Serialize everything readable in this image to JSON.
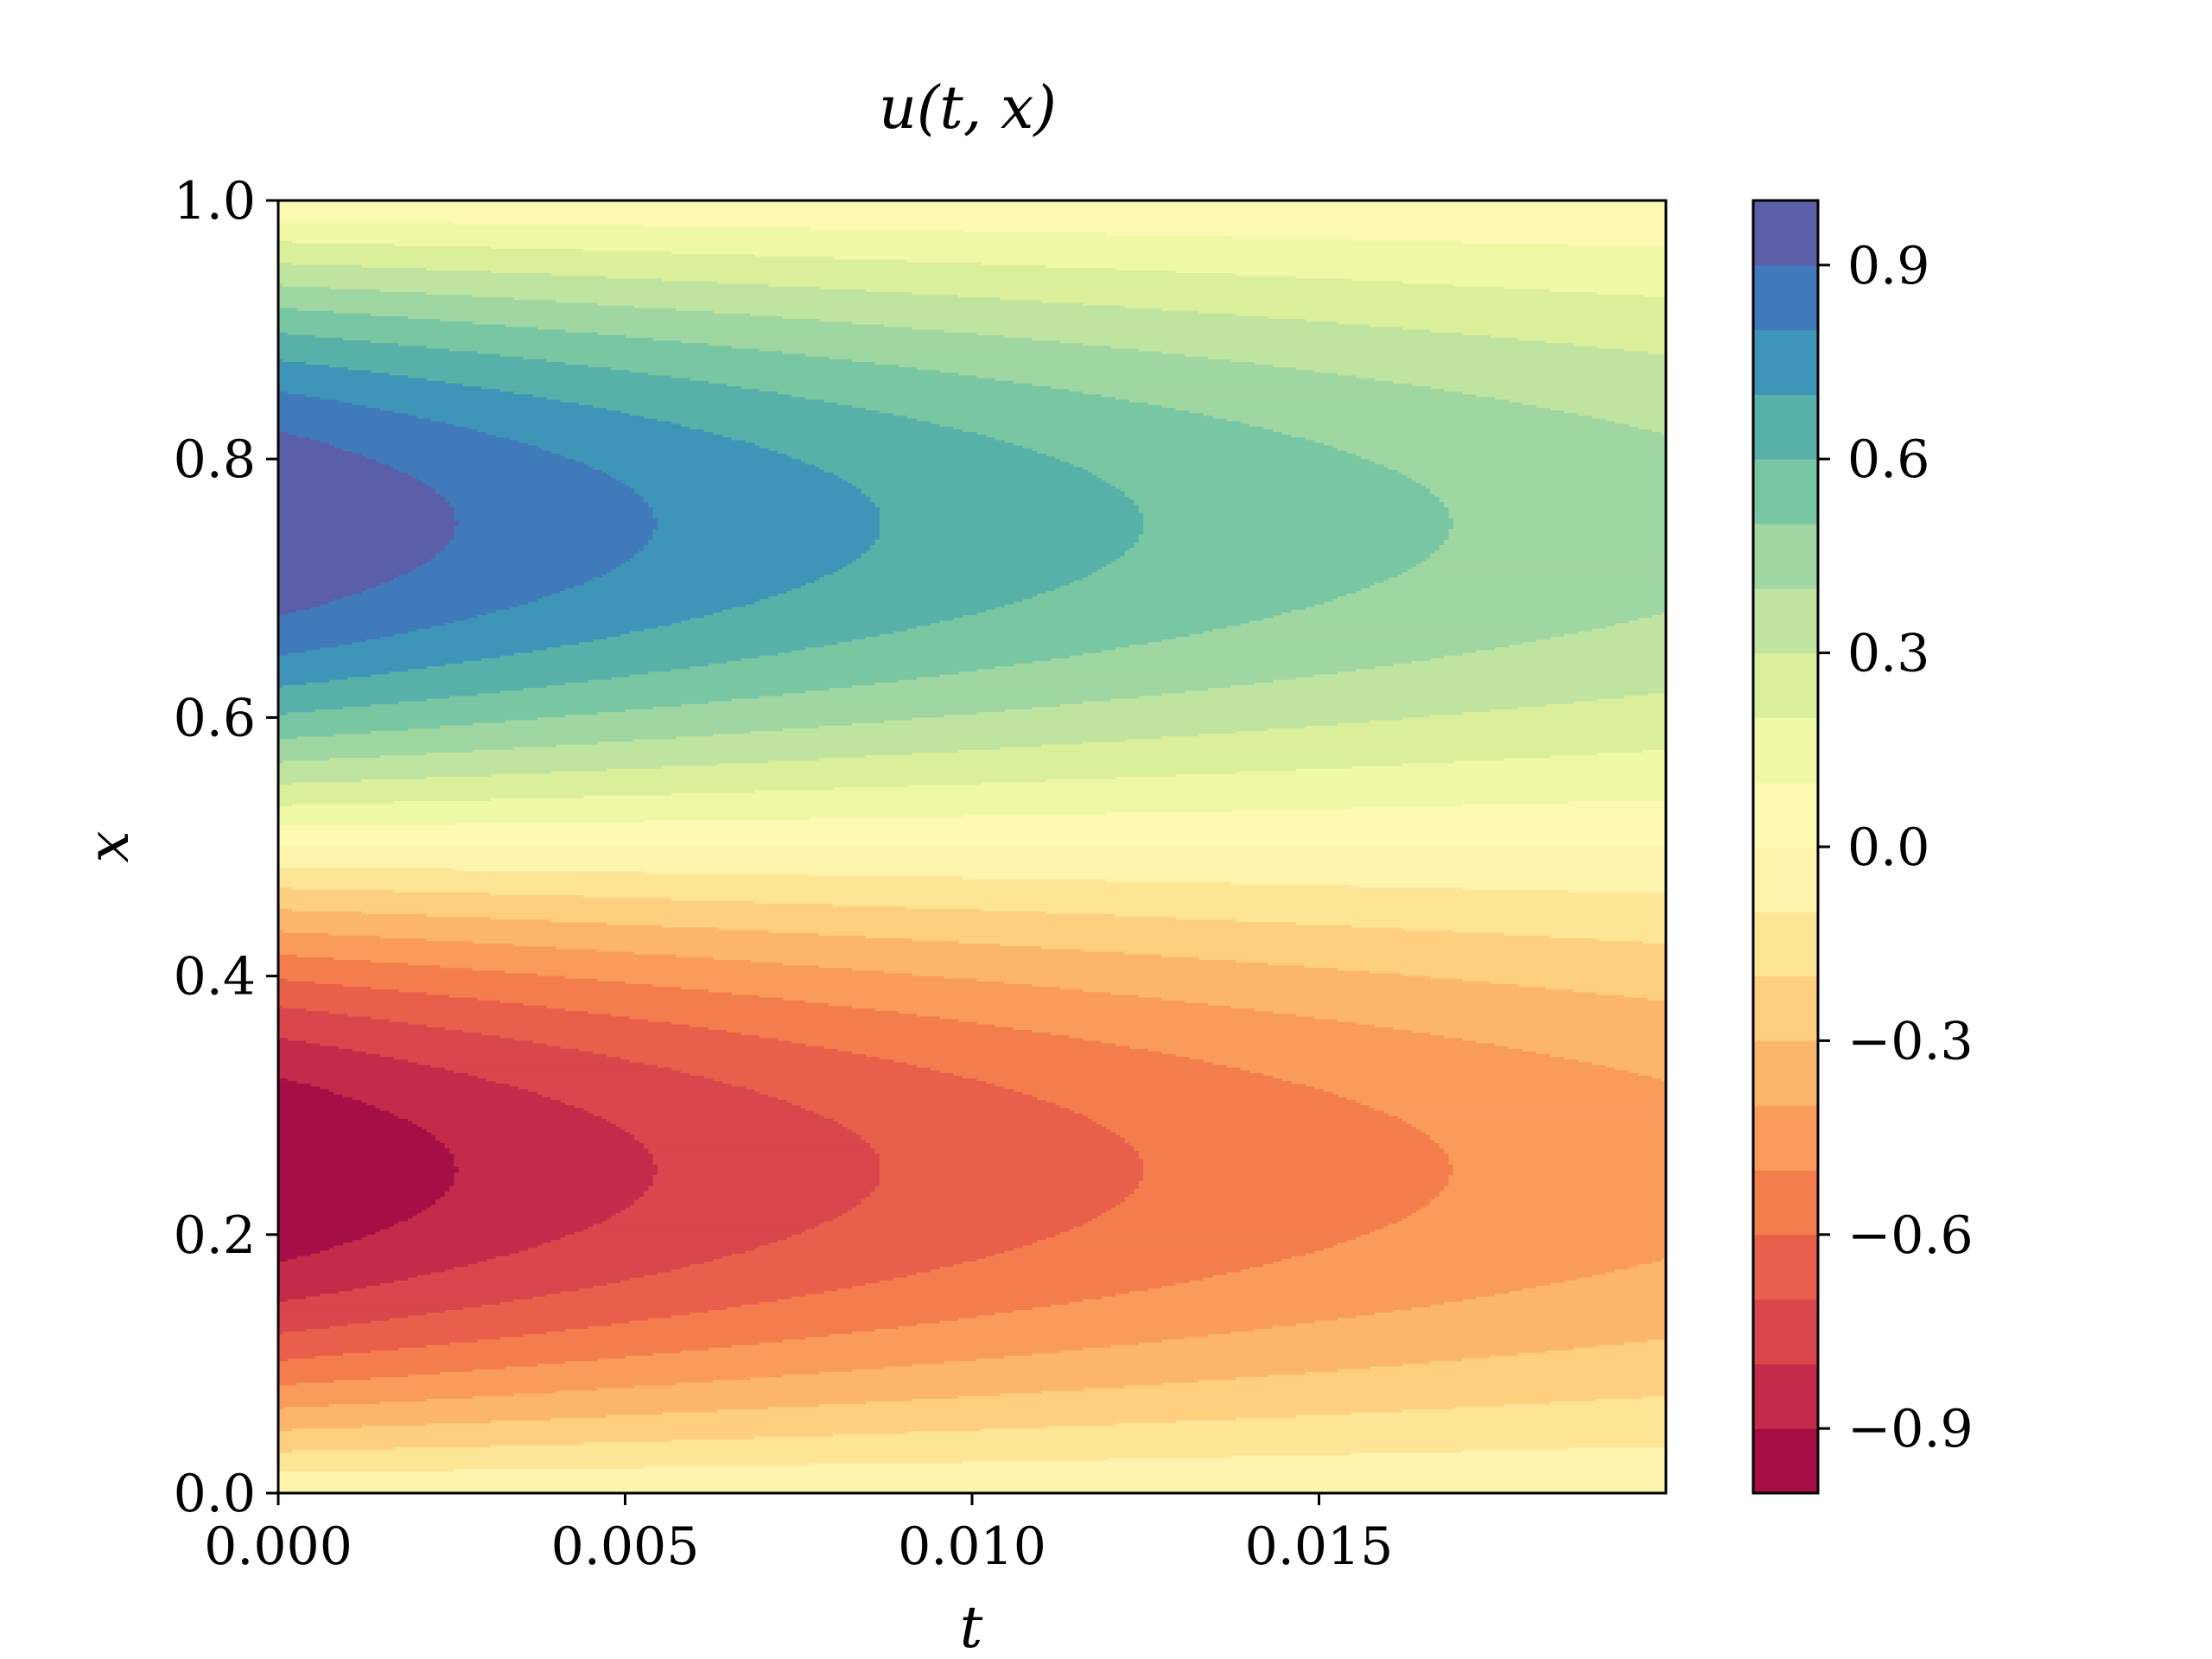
{
  "chart_data": {
    "type": "heatmap",
    "subtype": "filled-contour",
    "title": "u(t, x)",
    "xlabel": "t",
    "ylabel": "x",
    "xlim": [
      0.0,
      0.02
    ],
    "ylim": [
      0.0,
      1.0
    ],
    "x_ticks": [
      0.0,
      0.005,
      0.01,
      0.015
    ],
    "x_tick_labels": [
      "0.000",
      "0.005",
      "0.010",
      "0.015"
    ],
    "y_ticks": [
      0.0,
      0.2,
      0.4,
      0.6,
      0.8,
      1.0
    ],
    "y_tick_labels": [
      "0.0",
      "0.2",
      "0.4",
      "0.6",
      "0.8",
      "1.0"
    ],
    "colormap": "Spectral",
    "field": "u(t,x) = -sin(2*pi*x) * exp(-41*t)",
    "levels": [
      -1.0,
      -0.9,
      -0.8,
      -0.7,
      -0.6,
      -0.5,
      -0.4,
      -0.3,
      -0.2,
      -0.1,
      0.0,
      0.1,
      0.2,
      0.3,
      0.4,
      0.5,
      0.6,
      0.7,
      0.8,
      0.9,
      1.0
    ],
    "level_colors": [
      "#a50f46",
      "#c42a4a",
      "#d9474d",
      "#e8604b",
      "#f47d4e",
      "#f99c5b",
      "#fcb66c",
      "#fdcf7f",
      "#fee596",
      "#fff4ad",
      "#fbf9b2",
      "#eef8a5",
      "#dbef9b",
      "#bfe4a0",
      "#9fd6a1",
      "#78c6a2",
      "#57b1a9",
      "#3e95b8",
      "#407abb",
      "#5b5fa8"
    ],
    "colorbar": {
      "range": [
        -1.0,
        1.0
      ],
      "ticks": [
        -0.9,
        -0.6,
        -0.3,
        0.0,
        0.3,
        0.6,
        0.9
      ],
      "tick_labels": [
        "−0.9",
        "−0.6",
        "−0.3",
        "0.0",
        "0.3",
        "0.6",
        "0.9"
      ]
    }
  }
}
